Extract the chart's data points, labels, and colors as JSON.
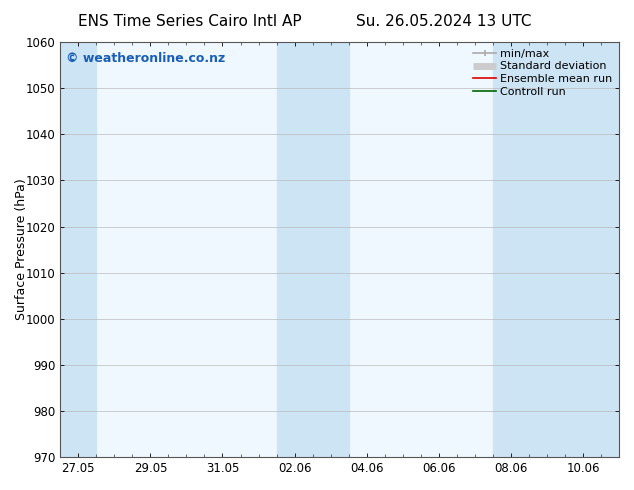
{
  "title_left": "ENS Time Series Cairo Intl AP",
  "title_right": "Su. 26.05.2024 13 UTC",
  "ylabel": "Surface Pressure (hPa)",
  "ylim": [
    970,
    1060
  ],
  "yticks": [
    970,
    980,
    990,
    1000,
    1010,
    1020,
    1030,
    1040,
    1050,
    1060
  ],
  "xtick_labels": [
    "27.05",
    "29.05",
    "31.05",
    "02.06",
    "04.06",
    "06.06",
    "08.06",
    "10.06"
  ],
  "xtick_positions": [
    0,
    2,
    4,
    6,
    8,
    10,
    12,
    14
  ],
  "xlim": [
    -0.5,
    15.0
  ],
  "shaded_bands": [
    {
      "start": -0.5,
      "end": 0.5
    },
    {
      "start": 5.5,
      "end": 7.5
    },
    {
      "start": 11.5,
      "end": 15.0
    }
  ],
  "shaded_color": "#cde4f5",
  "plot_bg_color": "#f0f8ff",
  "watermark_text": "© weatheronline.co.nz",
  "watermark_color": "#1a5eb8",
  "watermark_fontsize": 9,
  "legend_entries": [
    {
      "label": "min/max",
      "color": "#aaaaaa",
      "lw": 1.2
    },
    {
      "label": "Standard deviation",
      "color": "#cccccc",
      "lw": 5
    },
    {
      "label": "Ensemble mean run",
      "color": "#dd0000",
      "lw": 1.2
    },
    {
      "label": "Controll run",
      "color": "#006600",
      "lw": 1.2
    }
  ],
  "bg_color": "#ffffff",
  "spine_color": "#555555",
  "grid_color": "#bbbbbb",
  "title_fontsize": 11,
  "axis_label_fontsize": 9,
  "tick_fontsize": 8.5,
  "legend_fontsize": 8
}
